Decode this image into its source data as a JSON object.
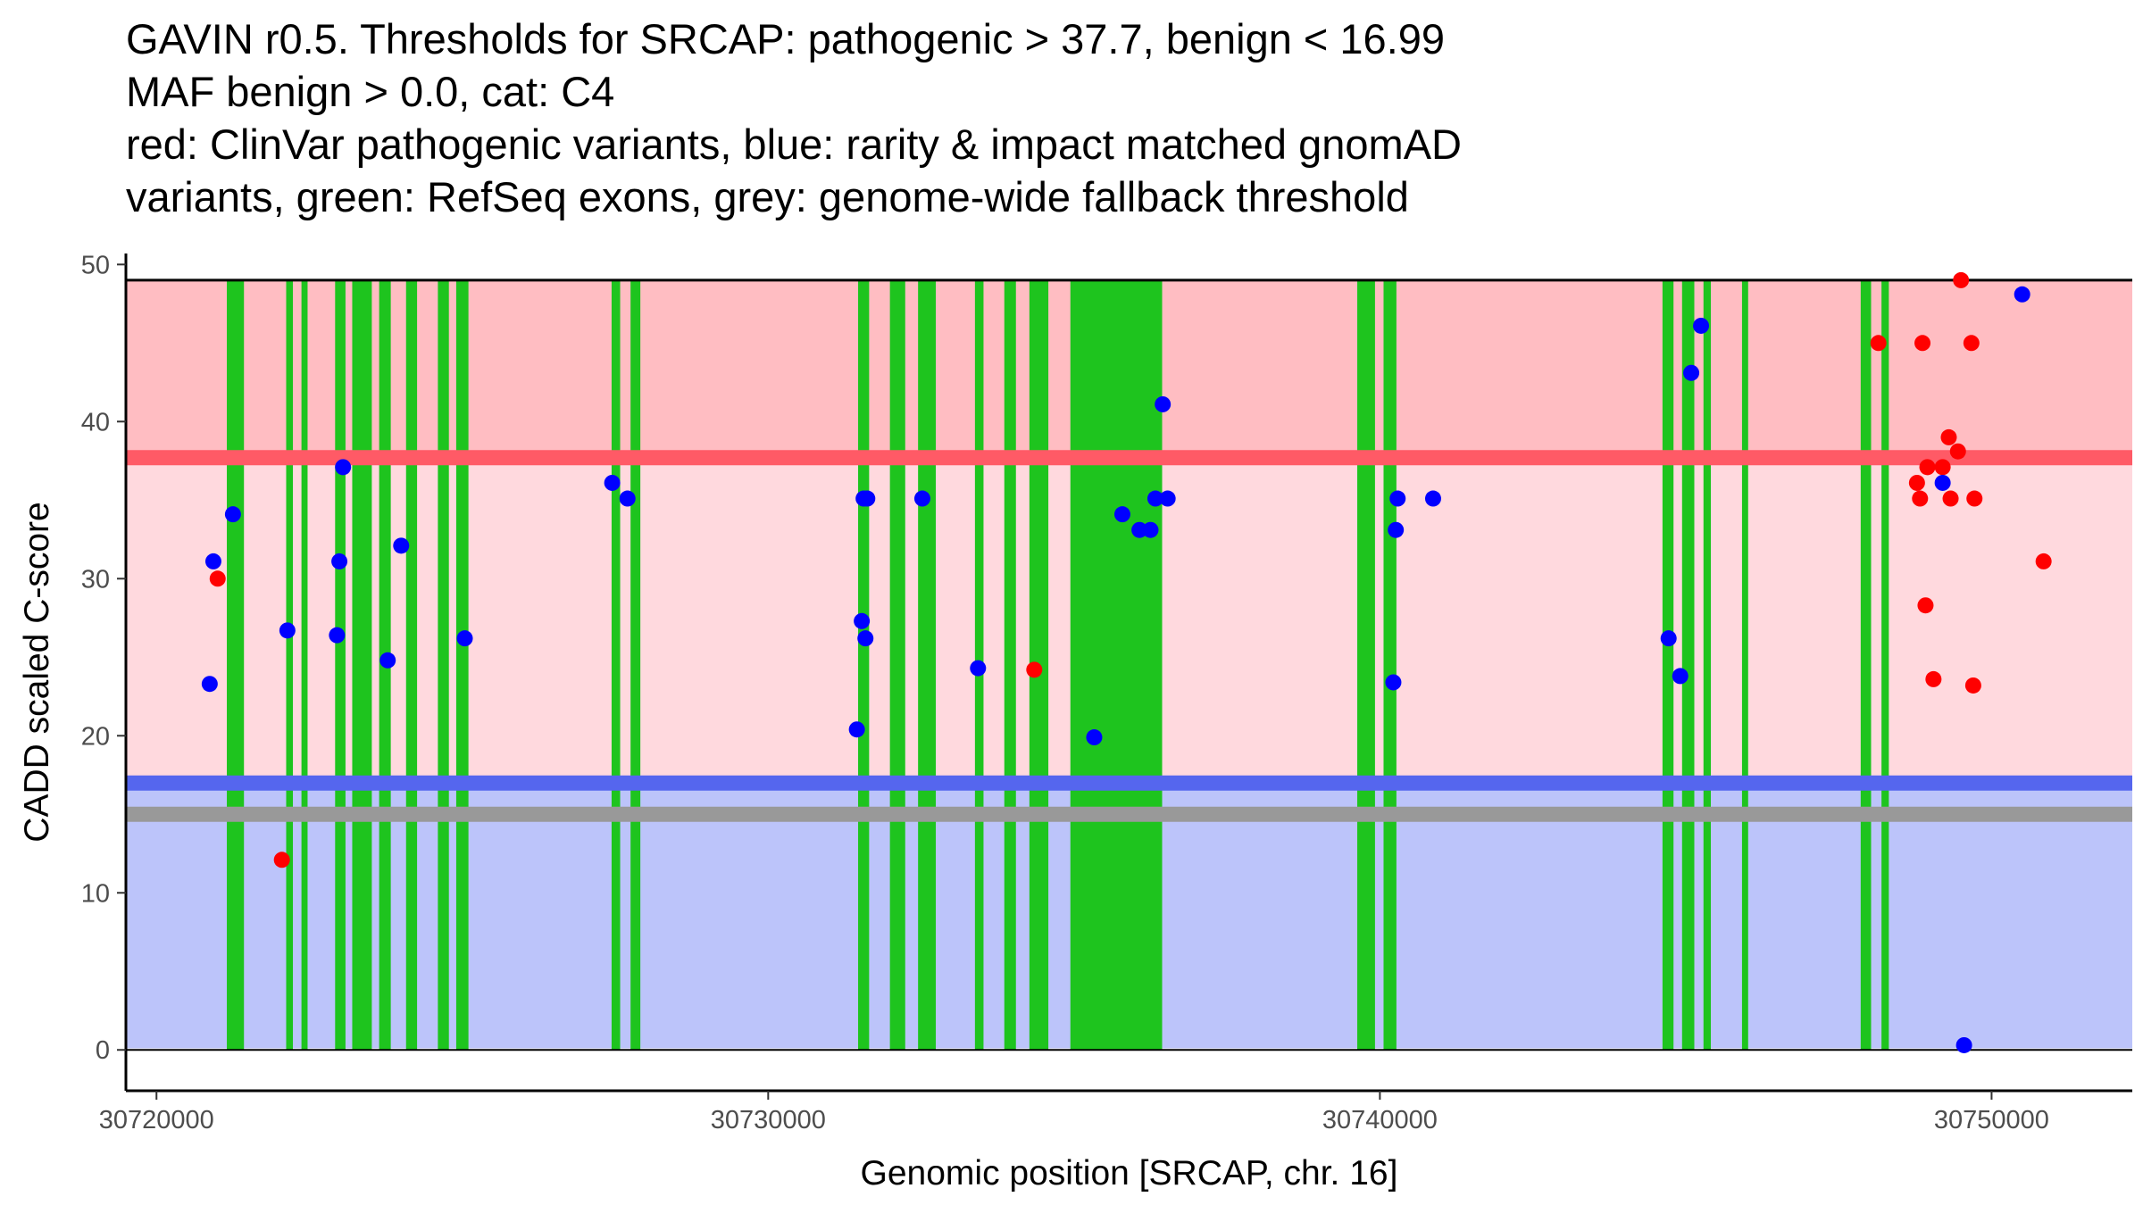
{
  "title_lines": [
    "GAVIN r0.5. Thresholds for SRCAP: pathogenic > 37.7, benign < 16.99",
    "MAF benign > 0.0, cat: C4",
    "red: ClinVar pathogenic variants, blue: rarity & impact matched gnomAD",
    "variants, green: RefSeq exons, grey: genome-wide fallback threshold"
  ],
  "colors": {
    "pathogenic_point": "#ff0000",
    "gnomad_point": "#0000ff",
    "exon": "#1ec41e",
    "pathogenic_region": "#ffbdc2",
    "middle_region": "#ffd9de",
    "benign_region": "#bcc4fa",
    "pathogenic_line": "#ff5a66",
    "benign_line": "#5566ee",
    "fallback_line": "#999999"
  },
  "chart_data": {
    "type": "scatter",
    "xlabel": "Genomic position [SRCAP, chr. 16]",
    "ylabel": "CADD scaled C-score",
    "xlim": [
      30719500,
      30752300
    ],
    "ylim": [
      -2.6,
      50.7
    ],
    "xticks": [
      30720000,
      30730000,
      30740000,
      30750000
    ],
    "yticks": [
      0,
      10,
      20,
      30,
      40,
      50
    ],
    "regions": [
      {
        "name": "pathogenic",
        "y0": 37.7,
        "y1": 49,
        "x0": 30719500,
        "x1": 30752300
      },
      {
        "name": "middle",
        "y0": 16.99,
        "y1": 37.7,
        "x0": 30719500,
        "x1": 30752300
      },
      {
        "name": "benign",
        "y0": 0.1,
        "y1": 16.99,
        "x0": 30719500,
        "x1": 30752300
      }
    ],
    "thresholds": [
      {
        "name": "pathogenic",
        "y": 37.7
      },
      {
        "name": "benign",
        "y": 16.99
      },
      {
        "name": "fallback",
        "y": 15.0
      }
    ],
    "exons": [
      [
        30721150,
        30721430
      ],
      [
        30722120,
        30722230
      ],
      [
        30722370,
        30722470
      ],
      [
        30722920,
        30723090
      ],
      [
        30723200,
        30723520
      ],
      [
        30723640,
        30723830
      ],
      [
        30724080,
        30724260
      ],
      [
        30724600,
        30724780
      ],
      [
        30724900,
        30725100
      ],
      [
        30727440,
        30727580
      ],
      [
        30727750,
        30727910
      ],
      [
        30731470,
        30731650
      ],
      [
        30731990,
        30732240
      ],
      [
        30732450,
        30732740
      ],
      [
        30733380,
        30733520
      ],
      [
        30733860,
        30734050
      ],
      [
        30734270,
        30734580
      ],
      [
        30734940,
        30736440
      ],
      [
        30739630,
        30739920
      ],
      [
        30740060,
        30740270
      ],
      [
        30744620,
        30744800
      ],
      [
        30744940,
        30745140
      ],
      [
        30745290,
        30745410
      ],
      [
        30745920,
        30746020
      ],
      [
        30747860,
        30748030
      ],
      [
        30748200,
        30748320
      ]
    ],
    "series": [
      {
        "name": "ClinVar pathogenic",
        "points": [
          [
            30721000,
            30
          ],
          [
            30722050,
            12.1
          ],
          [
            30734350,
            24.2
          ],
          [
            30748150,
            45
          ],
          [
            30748780,
            36.1
          ],
          [
            30748830,
            35.1
          ],
          [
            30748870,
            45
          ],
          [
            30748920,
            28.3
          ],
          [
            30748950,
            37.1
          ],
          [
            30749050,
            23.6
          ],
          [
            30749200,
            37.1
          ],
          [
            30749300,
            39
          ],
          [
            30749330,
            35.1
          ],
          [
            30749450,
            38.1
          ],
          [
            30749500,
            49
          ],
          [
            30749670,
            45
          ],
          [
            30749700,
            23.2
          ],
          [
            30749720,
            35.1
          ],
          [
            30750850,
            31.1
          ]
        ]
      },
      {
        "name": "gnomAD matched",
        "points": [
          [
            30720870,
            23.3
          ],
          [
            30720930,
            31.1
          ],
          [
            30721250,
            34.1
          ],
          [
            30722140,
            26.7
          ],
          [
            30722950,
            26.4
          ],
          [
            30722990,
            31.1
          ],
          [
            30723050,
            37.1
          ],
          [
            30723780,
            24.8
          ],
          [
            30724000,
            32.1
          ],
          [
            30725040,
            26.2
          ],
          [
            30727450,
            36.1
          ],
          [
            30727700,
            35.1
          ],
          [
            30731450,
            20.4
          ],
          [
            30731530,
            27.3
          ],
          [
            30731560,
            35.1
          ],
          [
            30731590,
            26.2
          ],
          [
            30731620,
            35.1
          ],
          [
            30732520,
            35.1
          ],
          [
            30733430,
            24.3
          ],
          [
            30735330,
            19.9
          ],
          [
            30735790,
            34.1
          ],
          [
            30736070,
            33.1
          ],
          [
            30736250,
            33.1
          ],
          [
            30736330,
            35.1
          ],
          [
            30736450,
            41.1
          ],
          [
            30736530,
            35.1
          ],
          [
            30740220,
            23.4
          ],
          [
            30740260,
            33.1
          ],
          [
            30740290,
            35.1
          ],
          [
            30740870,
            35.1
          ],
          [
            30744720,
            26.2
          ],
          [
            30744910,
            23.8
          ],
          [
            30745090,
            43.1
          ],
          [
            30745250,
            46.1
          ],
          [
            30749200,
            36.1
          ],
          [
            30749550,
            0.3
          ],
          [
            30750500,
            48.1
          ]
        ]
      }
    ]
  }
}
